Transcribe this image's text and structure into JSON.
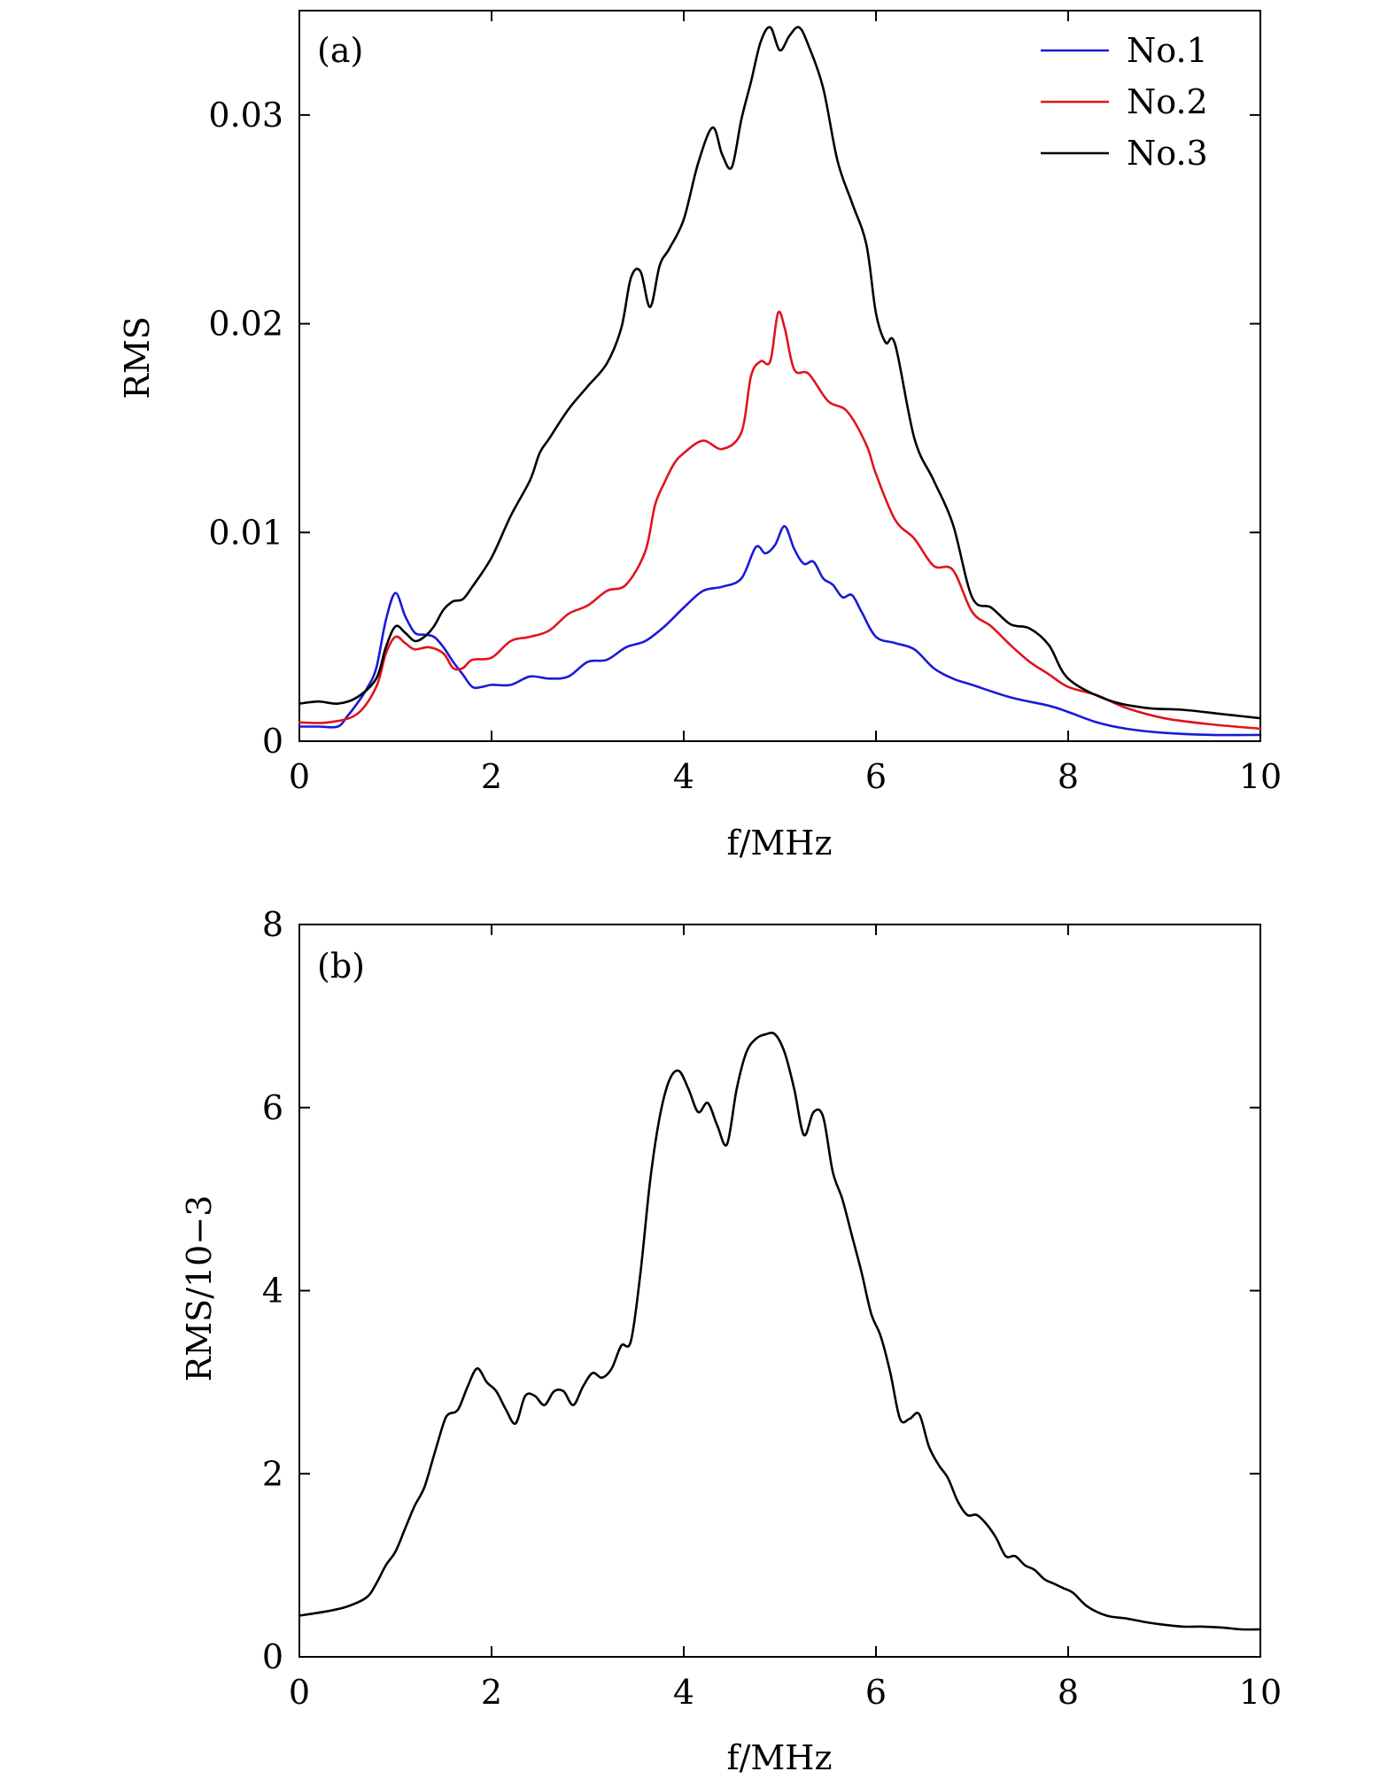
{
  "chart_data": [
    {
      "type": "line",
      "panel_label": "(a)",
      "xlabel": "f/MHz",
      "ylabel": "RMS",
      "xlim": [
        0,
        10
      ],
      "ylim": [
        0,
        0.035
      ],
      "xticks": [
        0,
        2,
        4,
        6,
        8,
        10
      ],
      "xtick_labels": [
        "0",
        "2",
        "4",
        "6",
        "8",
        "10"
      ],
      "yticks": [
        0,
        0.01,
        0.02,
        0.03
      ],
      "ytick_labels": [
        "0",
        "0.01",
        "0.02",
        "0.03"
      ],
      "grid": false,
      "legend_position": "top-right",
      "series": [
        {
          "name": "No.1",
          "color": "#1a1ad6",
          "x": [
            0,
            0.2,
            0.4,
            0.5,
            0.6,
            0.7,
            0.8,
            0.9,
            1.0,
            1.1,
            1.2,
            1.3,
            1.4,
            1.5,
            1.6,
            1.7,
            1.8,
            1.9,
            2.0,
            2.2,
            2.4,
            2.6,
            2.8,
            3.0,
            3.2,
            3.4,
            3.6,
            3.8,
            4.0,
            4.2,
            4.4,
            4.6,
            4.75,
            4.85,
            4.95,
            5.05,
            5.15,
            5.25,
            5.35,
            5.45,
            5.55,
            5.65,
            5.75,
            5.85,
            6.0,
            6.2,
            6.4,
            6.6,
            6.8,
            7.0,
            7.4,
            7.8,
            8.0,
            8.3,
            8.6,
            9.0,
            9.5,
            10.0
          ],
          "y": [
            0.0007,
            0.0007,
            0.0007,
            0.0012,
            0.0018,
            0.0025,
            0.0035,
            0.0058,
            0.0071,
            0.006,
            0.0052,
            0.0051,
            0.005,
            0.0045,
            0.0038,
            0.0032,
            0.0026,
            0.0026,
            0.0027,
            0.0027,
            0.0031,
            0.003,
            0.0031,
            0.0038,
            0.0039,
            0.0045,
            0.0048,
            0.0055,
            0.0064,
            0.0072,
            0.0074,
            0.0078,
            0.0093,
            0.009,
            0.0094,
            0.0103,
            0.0092,
            0.0085,
            0.0086,
            0.0078,
            0.0075,
            0.0069,
            0.007,
            0.0062,
            0.005,
            0.0047,
            0.0044,
            0.0035,
            0.003,
            0.0027,
            0.0021,
            0.0017,
            0.0014,
            0.0009,
            0.0006,
            0.0004,
            0.0003,
            0.0003
          ]
        },
        {
          "name": "No.2",
          "color": "#e0141e",
          "x": [
            0,
            0.3,
            0.6,
            0.8,
            0.9,
            1.0,
            1.1,
            1.2,
            1.35,
            1.5,
            1.6,
            1.7,
            1.8,
            2.0,
            2.2,
            2.4,
            2.6,
            2.8,
            3.0,
            3.2,
            3.4,
            3.6,
            3.7,
            3.8,
            3.9,
            4.0,
            4.2,
            4.4,
            4.6,
            4.7,
            4.8,
            4.9,
            4.98,
            5.05,
            5.15,
            5.3,
            5.5,
            5.7,
            5.9,
            6.0,
            6.2,
            6.4,
            6.6,
            6.8,
            7.0,
            7.2,
            7.4,
            7.6,
            7.8,
            8.0,
            8.3,
            8.6,
            9.0,
            9.5,
            10.0
          ],
          "y": [
            0.0009,
            0.0009,
            0.0013,
            0.0026,
            0.0042,
            0.005,
            0.0047,
            0.0044,
            0.0045,
            0.0042,
            0.0035,
            0.0035,
            0.0039,
            0.004,
            0.0048,
            0.005,
            0.0053,
            0.0061,
            0.0065,
            0.0072,
            0.0075,
            0.0091,
            0.0113,
            0.0124,
            0.0133,
            0.0138,
            0.0144,
            0.014,
            0.0148,
            0.0175,
            0.0182,
            0.0182,
            0.0205,
            0.0198,
            0.0178,
            0.0176,
            0.0163,
            0.0158,
            0.0142,
            0.0128,
            0.0106,
            0.0097,
            0.0084,
            0.0082,
            0.0062,
            0.0055,
            0.0046,
            0.0038,
            0.0032,
            0.0026,
            0.0022,
            0.0016,
            0.0011,
            0.0008,
            0.0006
          ]
        },
        {
          "name": "No.3",
          "color": "#000000",
          "x": [
            0,
            0.2,
            0.4,
            0.6,
            0.8,
            0.9,
            1.0,
            1.1,
            1.2,
            1.3,
            1.4,
            1.5,
            1.6,
            1.7,
            1.8,
            2.0,
            2.2,
            2.4,
            2.5,
            2.6,
            2.8,
            3.0,
            3.2,
            3.35,
            3.45,
            3.55,
            3.65,
            3.75,
            3.85,
            4.0,
            4.15,
            4.3,
            4.4,
            4.5,
            4.6,
            4.7,
            4.8,
            4.9,
            5.0,
            5.1,
            5.2,
            5.3,
            5.45,
            5.6,
            5.75,
            5.9,
            6.0,
            6.1,
            6.2,
            6.4,
            6.6,
            6.8,
            7.0,
            7.2,
            7.4,
            7.6,
            7.8,
            8.0,
            8.4,
            8.8,
            9.2,
            9.6,
            10.0
          ],
          "y": [
            0.0018,
            0.0019,
            0.0018,
            0.0021,
            0.003,
            0.0045,
            0.0055,
            0.0052,
            0.0048,
            0.005,
            0.0055,
            0.0063,
            0.0067,
            0.0068,
            0.0074,
            0.0088,
            0.0108,
            0.0125,
            0.0138,
            0.0145,
            0.0159,
            0.017,
            0.0181,
            0.0198,
            0.0222,
            0.0225,
            0.0208,
            0.0228,
            0.0236,
            0.025,
            0.0277,
            0.0294,
            0.0281,
            0.0275,
            0.0298,
            0.0316,
            0.0335,
            0.0342,
            0.0331,
            0.0338,
            0.0342,
            0.0333,
            0.0313,
            0.0278,
            0.0258,
            0.0238,
            0.0205,
            0.0191,
            0.019,
            0.0145,
            0.0125,
            0.0104,
            0.0069,
            0.0064,
            0.0056,
            0.0054,
            0.0046,
            0.003,
            0.002,
            0.0016,
            0.0015,
            0.0013,
            0.0011
          ]
        }
      ]
    },
    {
      "type": "line",
      "panel_label": "(b)",
      "xlabel": "f/MHz",
      "ylabel": "RMS/10−3",
      "xlim": [
        0,
        10
      ],
      "ylim": [
        0,
        8
      ],
      "xticks": [
        0,
        2,
        4,
        6,
        8,
        10
      ],
      "xtick_labels": [
        "0",
        "2",
        "4",
        "6",
        "8",
        "10"
      ],
      "yticks": [
        0,
        2,
        4,
        6,
        8
      ],
      "ytick_labels": [
        "0",
        "2",
        "4",
        "6",
        "8"
      ],
      "grid": false,
      "series": [
        {
          "color": "#000000",
          "x": [
            0,
            0.3,
            0.5,
            0.7,
            0.8,
            0.9,
            1.0,
            1.1,
            1.2,
            1.3,
            1.4,
            1.5,
            1.55,
            1.65,
            1.75,
            1.85,
            1.95,
            2.05,
            2.15,
            2.25,
            2.35,
            2.45,
            2.55,
            2.65,
            2.75,
            2.85,
            2.95,
            3.05,
            3.15,
            3.25,
            3.35,
            3.45,
            3.55,
            3.65,
            3.75,
            3.85,
            3.95,
            4.05,
            4.15,
            4.25,
            4.35,
            4.45,
            4.55,
            4.65,
            4.75,
            4.85,
            4.95,
            5.05,
            5.15,
            5.25,
            5.35,
            5.45,
            5.55,
            5.65,
            5.75,
            5.85,
            5.95,
            6.05,
            6.15,
            6.25,
            6.35,
            6.45,
            6.55,
            6.65,
            6.75,
            6.85,
            6.95,
            7.05,
            7.15,
            7.25,
            7.35,
            7.45,
            7.55,
            7.65,
            7.75,
            7.85,
            7.95,
            8.05,
            8.2,
            8.4,
            8.6,
            8.8,
            9.0,
            9.2,
            9.4,
            9.6,
            9.8,
            10.0
          ],
          "y": [
            0.45,
            0.5,
            0.55,
            0.65,
            0.8,
            1.0,
            1.15,
            1.4,
            1.65,
            1.85,
            2.2,
            2.55,
            2.65,
            2.7,
            2.95,
            3.15,
            3.0,
            2.9,
            2.7,
            2.55,
            2.85,
            2.85,
            2.75,
            2.9,
            2.9,
            2.75,
            2.95,
            3.1,
            3.05,
            3.15,
            3.4,
            3.45,
            4.2,
            5.2,
            5.9,
            6.3,
            6.4,
            6.2,
            5.95,
            6.05,
            5.8,
            5.6,
            6.2,
            6.6,
            6.75,
            6.8,
            6.8,
            6.6,
            6.2,
            5.7,
            5.95,
            5.9,
            5.3,
            5.0,
            4.6,
            4.2,
            3.75,
            3.5,
            3.1,
            2.6,
            2.6,
            2.65,
            2.3,
            2.1,
            1.95,
            1.7,
            1.55,
            1.55,
            1.45,
            1.3,
            1.1,
            1.1,
            1.0,
            0.95,
            0.85,
            0.8,
            0.75,
            0.7,
            0.55,
            0.45,
            0.42,
            0.38,
            0.35,
            0.33,
            0.33,
            0.32,
            0.3,
            0.3
          ]
        }
      ]
    }
  ]
}
